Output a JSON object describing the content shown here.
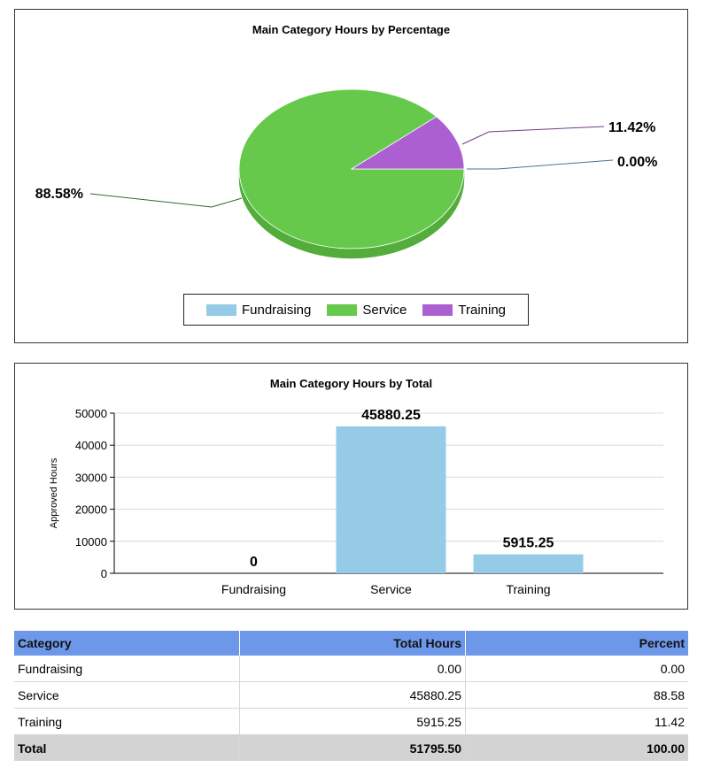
{
  "colors": {
    "fundraising": "#96cbe8",
    "service": "#66c94c",
    "training": "#ac5fd1",
    "bar": "#96cbe8",
    "header": "#6d97e8",
    "total_row": "#d3d3d3"
  },
  "chart_data": [
    {
      "type": "pie",
      "title": "Main Category Hours by Percentage",
      "categories": [
        "Fundraising",
        "Service",
        "Training"
      ],
      "values": [
        0.0,
        88.58,
        11.42
      ],
      "labels": [
        "0.00%",
        "88.58%",
        "11.42%"
      ],
      "legend": "bottom"
    },
    {
      "type": "bar",
      "title": "Main Category Hours by Total",
      "categories": [
        "Fundraising",
        "Service",
        "Training"
      ],
      "values": [
        0,
        45880.25,
        5915.25
      ],
      "labels": [
        "0",
        "45880.25",
        "5915.25"
      ],
      "xlabel": "",
      "ylabel": "Approved Hours",
      "ylim": [
        0,
        50000
      ],
      "yticks": [
        "0",
        "10000",
        "20000",
        "30000",
        "40000",
        "50000"
      ],
      "grid": true
    }
  ],
  "table": {
    "headers": [
      "Category",
      "Total Hours",
      "Percent"
    ],
    "rows": [
      [
        "Fundraising",
        "0.00",
        "0.00"
      ],
      [
        "Service",
        "45880.25",
        "88.58"
      ],
      [
        "Training",
        "5915.25",
        "11.42"
      ]
    ],
    "total": [
      "Total",
      "51795.50",
      "100.00"
    ]
  }
}
